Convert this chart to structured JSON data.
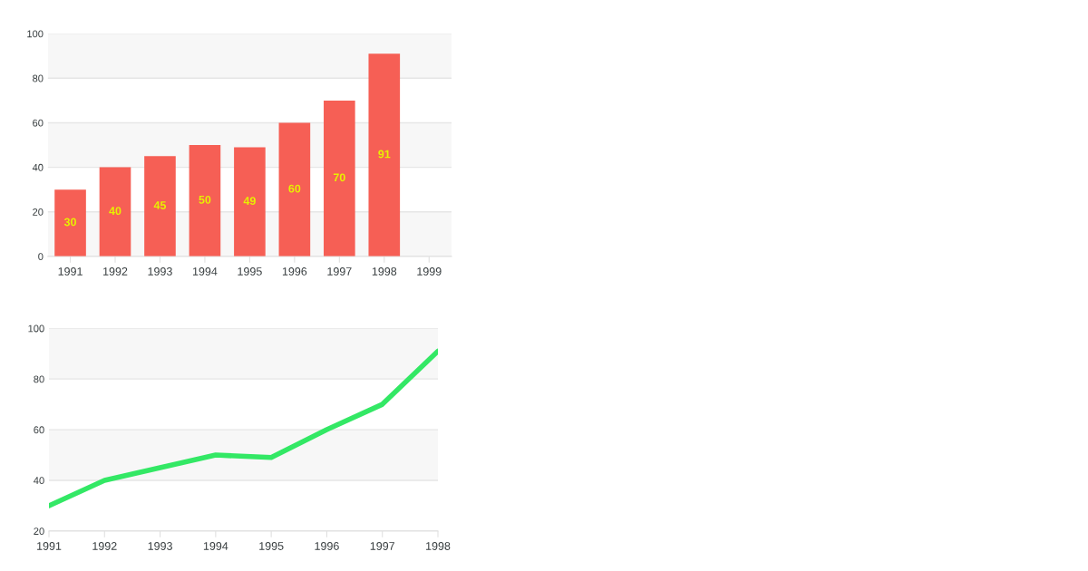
{
  "chart_data": [
    {
      "type": "bar",
      "categories": [
        "1991",
        "1992",
        "1993",
        "1994",
        "1995",
        "1996",
        "1997",
        "1998",
        "1999"
      ],
      "series": [
        {
          "color": "#f65f55",
          "values": [
            30,
            40,
            45,
            50,
            49,
            60,
            70,
            91,
            null
          ]
        }
      ],
      "ylim": [
        0,
        100
      ],
      "yticks": [
        0,
        20,
        40,
        60,
        80,
        100
      ],
      "grid": "y",
      "data_labels": true,
      "legend": false
    },
    {
      "type": "line",
      "categories": [
        "1991",
        "1992",
        "1993",
        "1994",
        "1995",
        "1996",
        "1997",
        "1998"
      ],
      "series": [
        {
          "color": "#33e865",
          "values": [
            30,
            40,
            45,
            50,
            49,
            60,
            70,
            91
          ]
        }
      ],
      "ylim": [
        20,
        100
      ],
      "yticks": [
        20,
        40,
        60,
        80,
        100
      ],
      "grid": "y",
      "marker": "none",
      "line_style": "solid",
      "legend": false
    }
  ]
}
